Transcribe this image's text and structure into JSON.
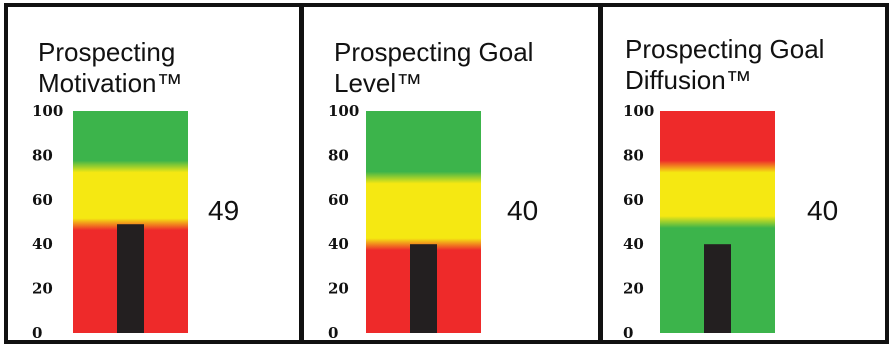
{
  "chart_data": [
    {
      "type": "bar",
      "title_lines": [
        "Prospecting",
        "Motivation™"
      ],
      "value": 49,
      "value_label": "49",
      "ylim": [
        0,
        100
      ],
      "ticks": [
        "100",
        "80",
        "60",
        "40",
        "20",
        "0"
      ],
      "bands": [
        {
          "from": 0,
          "to": 49,
          "color": "#ee2a2a"
        },
        {
          "from": 49,
          "to": 75,
          "color": "#f5e812"
        },
        {
          "from": 75,
          "to": 100,
          "color": "#3cb44b"
        }
      ]
    },
    {
      "type": "bar",
      "title_lines": [
        "Prospecting Goal",
        "Level™"
      ],
      "value": 40,
      "value_label": "40",
      "ylim": [
        0,
        100
      ],
      "ticks": [
        "100",
        "80",
        "60",
        "40",
        "20",
        "0"
      ],
      "bands": [
        {
          "from": 0,
          "to": 40,
          "color": "#ee2a2a"
        },
        {
          "from": 40,
          "to": 70,
          "color": "#f5e812"
        },
        {
          "from": 70,
          "to": 100,
          "color": "#3cb44b"
        }
      ]
    },
    {
      "type": "bar",
      "title_lines": [
        "Prospecting Goal",
        "Diffusion™"
      ],
      "value": 40,
      "value_label": "40",
      "ylim": [
        0,
        100
      ],
      "ticks": [
        "100",
        "80",
        "60",
        "40",
        "20",
        "0"
      ],
      "bands": [
        {
          "from": 0,
          "to": 50,
          "color": "#3cb44b"
        },
        {
          "from": 50,
          "to": 75,
          "color": "#f5e812"
        },
        {
          "from": 75,
          "to": 100,
          "color": "#ee2a2a"
        }
      ]
    }
  ],
  "colors": {
    "bar": "#231f20",
    "frame": "#111111"
  }
}
